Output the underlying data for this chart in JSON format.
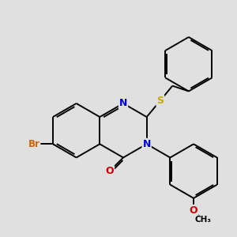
{
  "background_color": "#e0e0e0",
  "atom_colors": {
    "N": "#0000cc",
    "O": "#cc0000",
    "S": "#ccaa00",
    "Br": "#cc6600",
    "C": "#000000"
  },
  "bond_color": "#000000",
  "bond_width": 1.4,
  "dbo": 0.06
}
